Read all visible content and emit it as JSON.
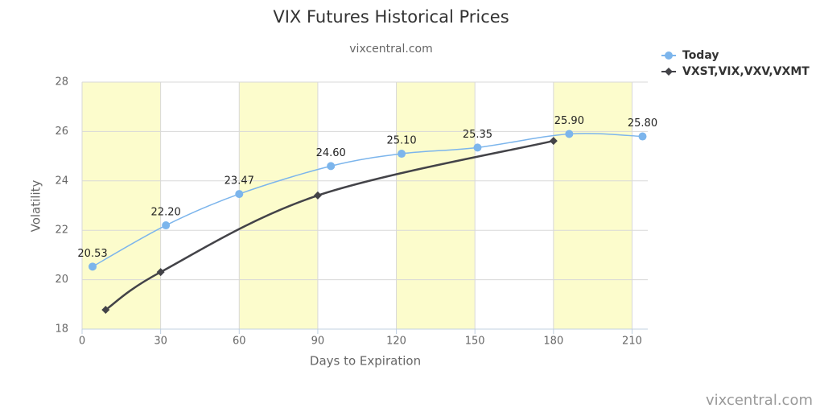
{
  "chart_data": {
    "type": "line",
    "title": "VIX Futures Historical Prices",
    "subtitle": "vixcentral.com",
    "x_label": "Days to Expiration",
    "y_label": "Volatility",
    "watermark": "vixcentral.com",
    "xlim": [
      0,
      216
    ],
    "xticks": [
      0,
      30,
      60,
      90,
      120,
      150,
      180,
      210
    ],
    "ylim": [
      18,
      28
    ],
    "yticks": [
      18,
      20,
      22,
      24,
      26,
      28
    ],
    "bands": [
      [
        0,
        30
      ],
      [
        60,
        90
      ],
      [
        120,
        150
      ],
      [
        180,
        210
      ]
    ],
    "band_color": "#fcfccc",
    "grid": true,
    "legend": "top-right",
    "series": [
      {
        "name": "Today",
        "color": "#7cb5ec",
        "marker": "circle",
        "x": [
          4,
          32,
          60,
          95,
          122,
          151,
          186,
          214
        ],
        "values": [
          20.53,
          22.2,
          23.47,
          24.6,
          25.1,
          25.35,
          25.9,
          25.8
        ],
        "value_labels": [
          "20.53",
          "22.20",
          "23.47",
          "24.60",
          "25.10",
          "25.35",
          "25.90",
          "25.80"
        ]
      },
      {
        "name": "VXST,VIX,VXV,VXMT",
        "color": "#434348",
        "marker": "diamond",
        "x": [
          9,
          30,
          90,
          180
        ],
        "values": [
          18.78,
          20.31,
          23.41,
          25.62
        ]
      }
    ]
  }
}
